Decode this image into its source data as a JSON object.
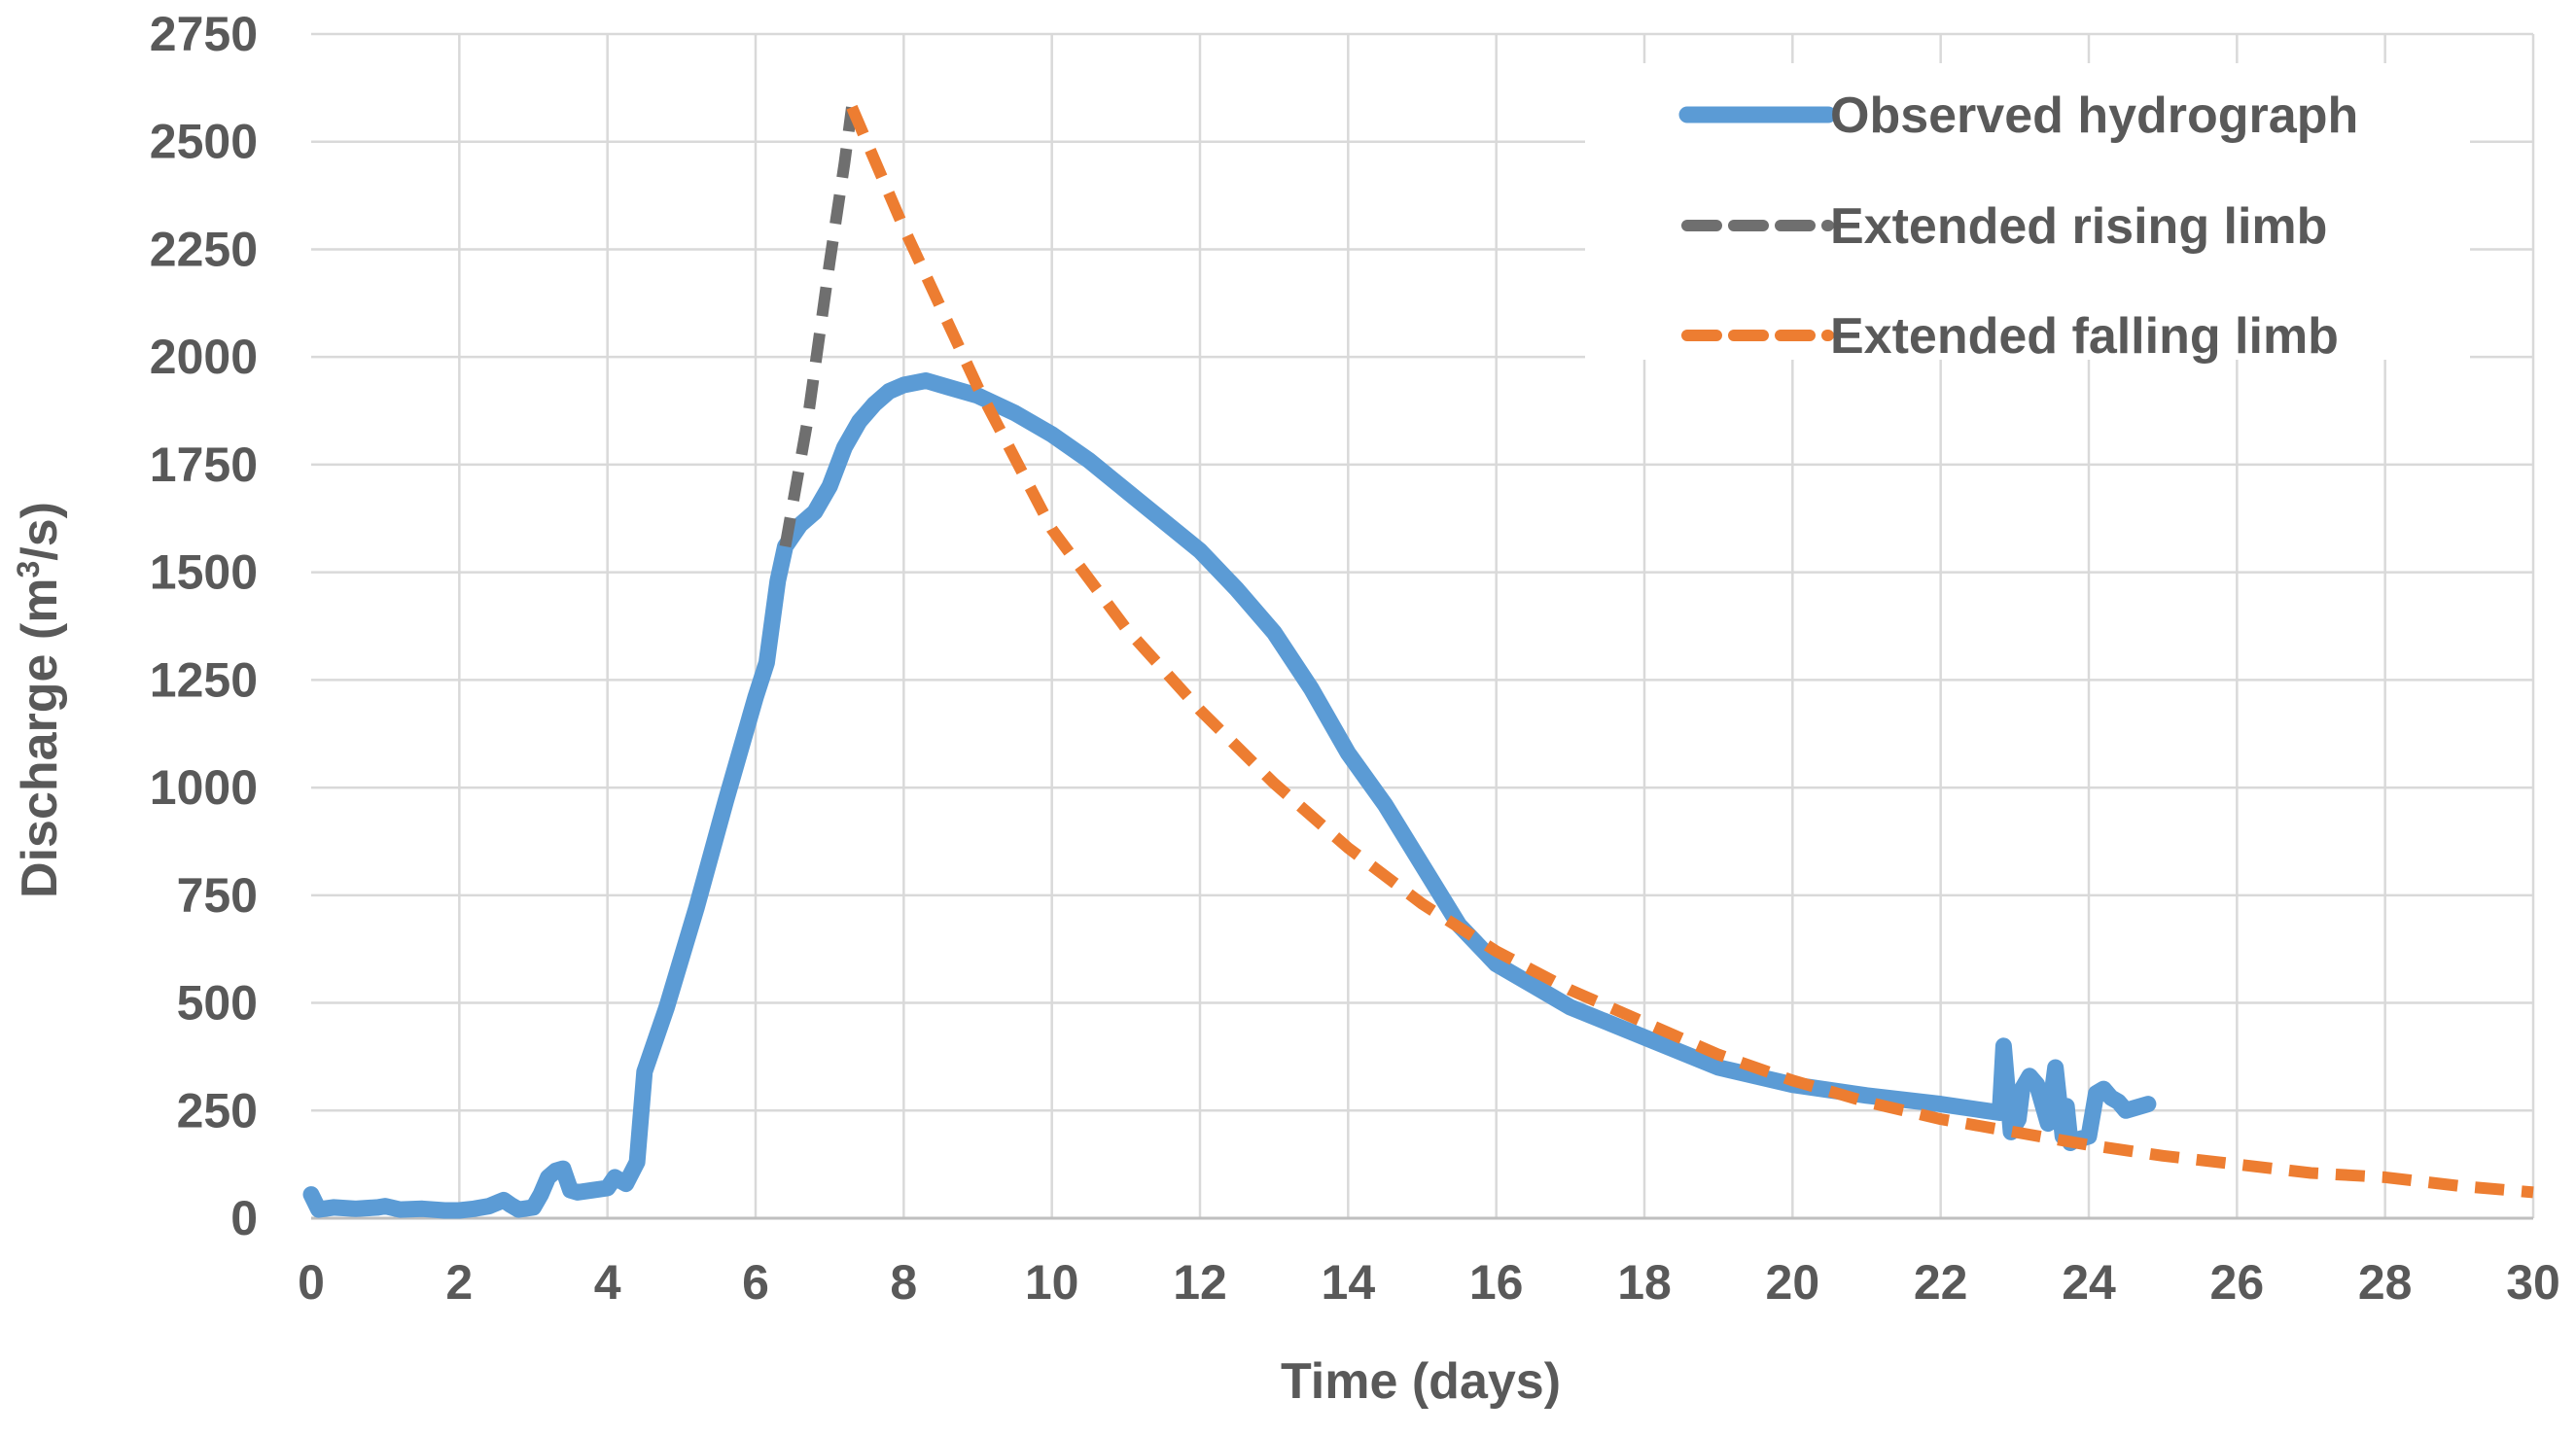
{
  "chart_data": {
    "type": "line",
    "title": "",
    "xlabel": "Time (days)",
    "ylabel": "Discharge (m",
    "ylabel_superscript": "3",
    "ylabel_tail": "/s)",
    "xlim": [
      0,
      30
    ],
    "ylim": [
      0,
      2750
    ],
    "xticks": [
      0,
      2,
      4,
      6,
      8,
      10,
      12,
      14,
      16,
      18,
      20,
      22,
      24,
      26,
      28,
      30
    ],
    "yticks": [
      0,
      250,
      500,
      750,
      1000,
      1250,
      1500,
      1750,
      2000,
      2250,
      2500,
      2750
    ],
    "grid": true,
    "legend_position": "top-right",
    "colors": {
      "observed": "#5b9bd5",
      "rising": "#6f6f6f",
      "falling": "#ed7d31",
      "grid": "#d9d9d9",
      "text": "#595959"
    },
    "series": [
      {
        "name": "Observed hydrograph",
        "style": "solid",
        "x": [
          0,
          0.1,
          0.3,
          0.6,
          0.9,
          1.0,
          1.2,
          1.5,
          1.8,
          2.0,
          2.2,
          2.4,
          2.6,
          2.7,
          2.8,
          3.0,
          3.1,
          3.2,
          3.3,
          3.4,
          3.5,
          3.6,
          3.8,
          4.0,
          4.1,
          4.25,
          4.4,
          4.5,
          4.8,
          5.2,
          5.6,
          6.0,
          6.15,
          6.3,
          6.4,
          6.6,
          6.8,
          7.0,
          7.2,
          7.4,
          7.6,
          7.8,
          8.0,
          8.3,
          8.6,
          9.0,
          9.5,
          10.0,
          10.5,
          11.0,
          11.5,
          12.0,
          12.5,
          13.0,
          13.5,
          14.0,
          14.5,
          15.0,
          15.5,
          16.0,
          16.5,
          17.0,
          18.0,
          19.0,
          20.0,
          21.0,
          22.0,
          22.6,
          22.8,
          22.85,
          22.95,
          23.05,
          23.1,
          23.2,
          23.3,
          23.45,
          23.55,
          23.65,
          23.7,
          23.75,
          23.8,
          23.9,
          24.0,
          24.1,
          24.2,
          24.3,
          24.4,
          24.5,
          24.6,
          24.8
        ],
        "y": [
          55,
          20,
          25,
          22,
          25,
          28,
          20,
          22,
          18,
          18,
          22,
          28,
          42,
          30,
          20,
          25,
          55,
          95,
          110,
          115,
          65,
          60,
          65,
          70,
          95,
          80,
          130,
          340,
          490,
          720,
          970,
          1210,
          1290,
          1480,
          1560,
          1610,
          1640,
          1700,
          1790,
          1850,
          1890,
          1920,
          1935,
          1945,
          1930,
          1910,
          1870,
          1820,
          1760,
          1690,
          1620,
          1550,
          1460,
          1360,
          1230,
          1080,
          960,
          820,
          680,
          590,
          540,
          490,
          420,
          350,
          310,
          285,
          265,
          250,
          245,
          400,
          200,
          230,
          300,
          330,
          310,
          220,
          350,
          190,
          260,
          175,
          180,
          185,
          190,
          290,
          300,
          280,
          270,
          250,
          255,
          265
        ]
      },
      {
        "name": "Extended rising limb",
        "style": "dash",
        "x": [
          6.4,
          6.7,
          7.0,
          7.2,
          7.3
        ],
        "y": [
          1560,
          1850,
          2220,
          2450,
          2580
        ]
      },
      {
        "name": "Extended falling limb",
        "style": "dash",
        "x": [
          7.3,
          8.0,
          9.0,
          10.0,
          11.0,
          12.0,
          13.0,
          14.0,
          15.0,
          16.0,
          17.0,
          18.0,
          19.0,
          20.0,
          21.0,
          22.0,
          23.0,
          24.0,
          25.0,
          26.0,
          27.0,
          28.0,
          29.0,
          30.0
        ],
        "y": [
          2580,
          2300,
          1930,
          1600,
          1370,
          1180,
          1010,
          860,
          730,
          620,
          530,
          455,
          380,
          320,
          270,
          230,
          200,
          170,
          145,
          125,
          105,
          95,
          75,
          60
        ]
      }
    ]
  }
}
